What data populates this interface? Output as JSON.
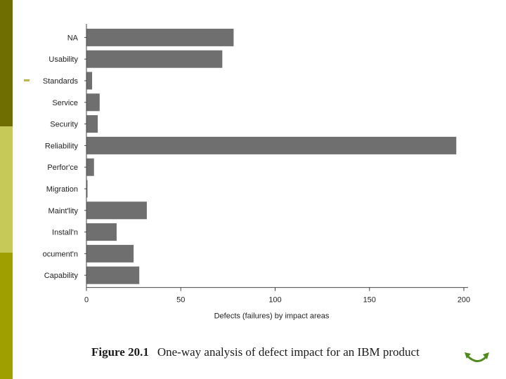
{
  "slide": {
    "caption_figure": "Figure 20.1",
    "caption_text": "One-way analysis of defect impact for an IBM product",
    "accent_colors": [
      "#6e6f00",
      "#c6c957",
      "#9fa000"
    ],
    "nav_icon": "return-arrow-icon"
  },
  "chart_data": {
    "type": "bar",
    "orientation": "horizontal",
    "title": "",
    "xlabel": "Defects (failures) by impact areas",
    "ylabel": "",
    "xlim": [
      0,
      200
    ],
    "xticks": [
      0,
      50,
      100,
      150,
      200
    ],
    "grid": false,
    "categories": [
      "NA",
      "Usability",
      "Standards",
      "Service",
      "Security",
      "Reliability",
      "Perfor'ce",
      "Migration",
      "Maint'lity",
      "Install'n",
      "ocument'n",
      "Capability"
    ],
    "values": [
      78,
      72,
      3,
      7,
      6,
      196,
      4,
      0.5,
      32,
      16,
      25,
      28
    ],
    "bar_color": "#6f6f6f"
  }
}
